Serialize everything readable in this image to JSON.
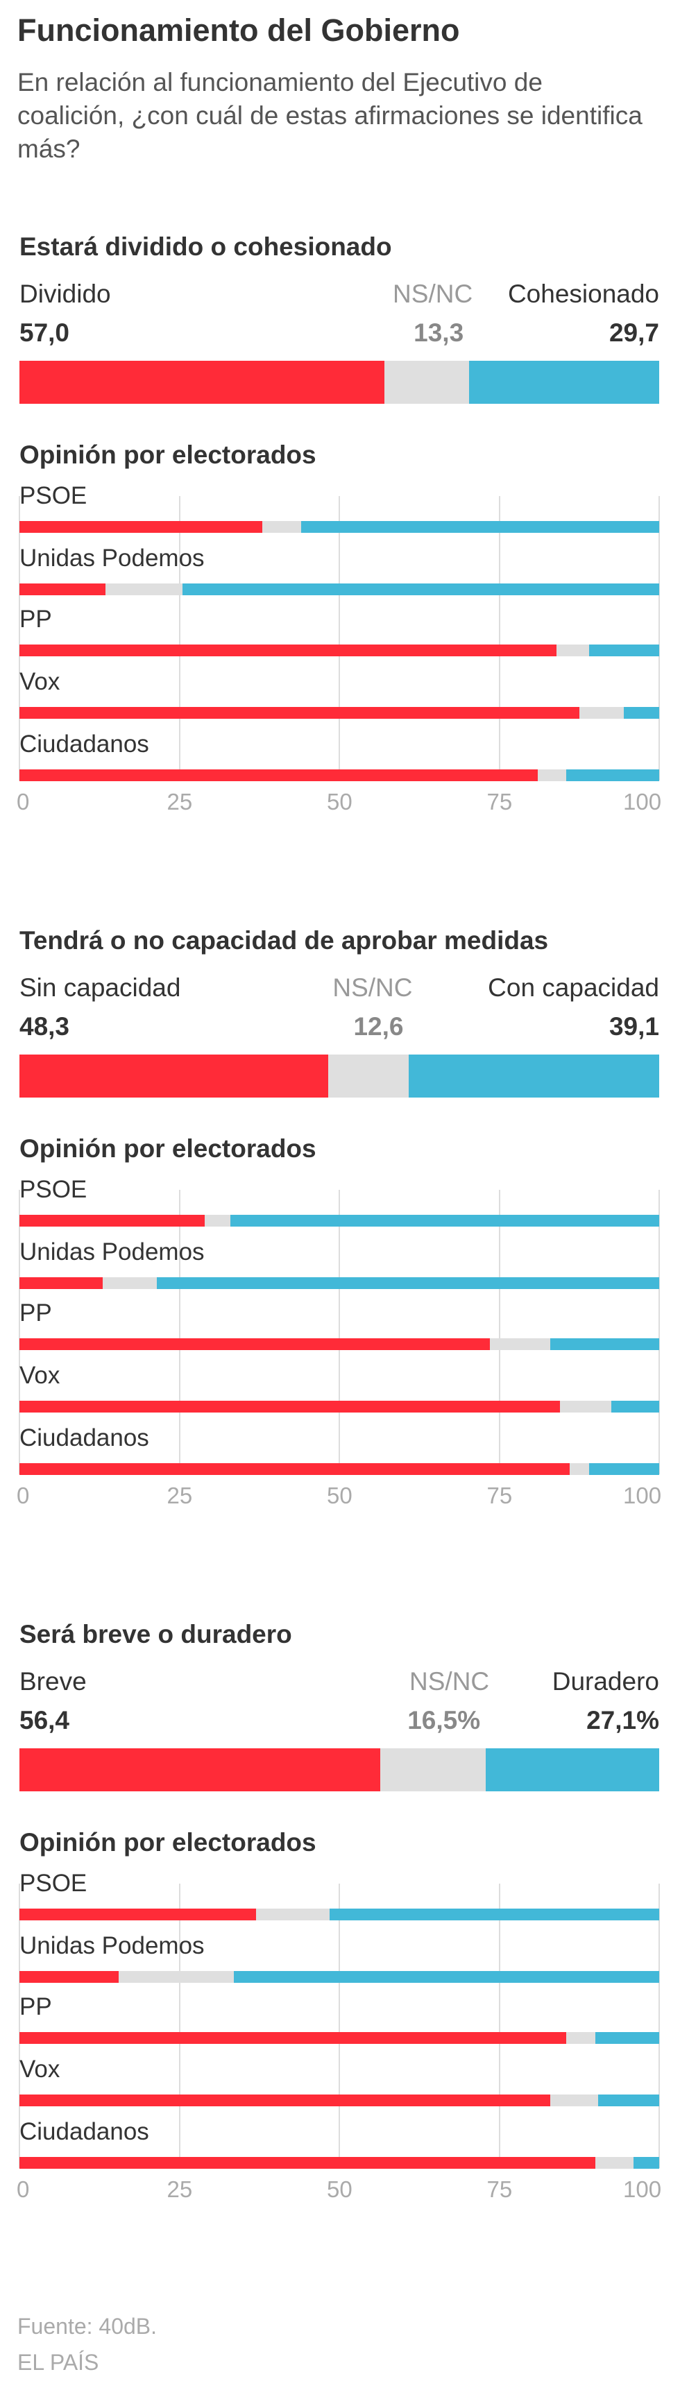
{
  "header": {
    "title": "Funcionamiento del Gobierno",
    "subtitle": "En relación al funcionamiento del Ejecutivo de coalición, ¿con cuál de estas afirmaciones se identifica más?"
  },
  "colors": {
    "first": "#FF2B38",
    "middle": "#DFDFDF",
    "last": "#42B8D8",
    "grid": "#DDDDDD"
  },
  "sub_title": "Opinión por electorados",
  "axis_ticks": [
    "0",
    "25",
    "50",
    "75",
    "100"
  ],
  "footer": {
    "source": "Fuente: 40dB.",
    "publisher": "EL PAÍS"
  },
  "chart_data": [
    {
      "type": "bar",
      "stacked": true,
      "orientation": "horizontal",
      "title": "Estará dividido o cohesionado",
      "series_names": [
        "Dividido",
        "NS/NC",
        "Cohesionado"
      ],
      "total": {
        "values": [
          57.0,
          13.3,
          29.7
        ],
        "labels": [
          "57,0",
          "13,3",
          "29,7"
        ]
      },
      "subtitle": "Opinión por electorados",
      "xlim": [
        0,
        100
      ],
      "categories": [
        "PSOE",
        "Unidas Podemos",
        "PP",
        "Vox",
        "Ciudadanos"
      ],
      "values": [
        [
          38,
          6,
          56
        ],
        [
          13.5,
          12,
          74.5
        ],
        [
          84,
          5,
          11
        ],
        [
          87.5,
          7,
          5.5
        ],
        [
          81,
          4.5,
          14.5
        ]
      ]
    },
    {
      "type": "bar",
      "stacked": true,
      "orientation": "horizontal",
      "title": "Tendrá o no capacidad de aprobar medidas",
      "series_names": [
        "Sin capacidad",
        "NS/NC",
        "Con capacidad"
      ],
      "total": {
        "values": [
          48.3,
          12.6,
          39.1
        ],
        "labels": [
          "48,3",
          "12,6",
          "39,1"
        ]
      },
      "subtitle": "Opinión por electorados",
      "xlim": [
        0,
        100
      ],
      "categories": [
        "PSOE",
        "Unidas Podemos",
        "PP",
        "Vox",
        "Ciudadanos"
      ],
      "values": [
        [
          29,
          4,
          67
        ],
        [
          13,
          8.5,
          78.5
        ],
        [
          73.5,
          9.5,
          17
        ],
        [
          84.5,
          8,
          7.5
        ],
        [
          86,
          3,
          11
        ]
      ]
    },
    {
      "type": "bar",
      "stacked": true,
      "orientation": "horizontal",
      "title": "Será breve o duradero",
      "series_names": [
        "Breve",
        "NS/NC",
        "Duradero"
      ],
      "total": {
        "values": [
          56.4,
          16.5,
          27.1
        ],
        "labels": [
          "56,4",
          "16,5%",
          "27,1%"
        ]
      },
      "subtitle": "Opinión por electorados",
      "xlim": [
        0,
        100
      ],
      "categories": [
        "PSOE",
        "Unidas Podemos",
        "PP",
        "Vox",
        "Ciudadanos"
      ],
      "values": [
        [
          37,
          11.5,
          51.5
        ],
        [
          15.5,
          18,
          66.5
        ],
        [
          85.5,
          4.5,
          10
        ],
        [
          83,
          7.5,
          9.5
        ],
        [
          90,
          6,
          4
        ]
      ]
    }
  ]
}
